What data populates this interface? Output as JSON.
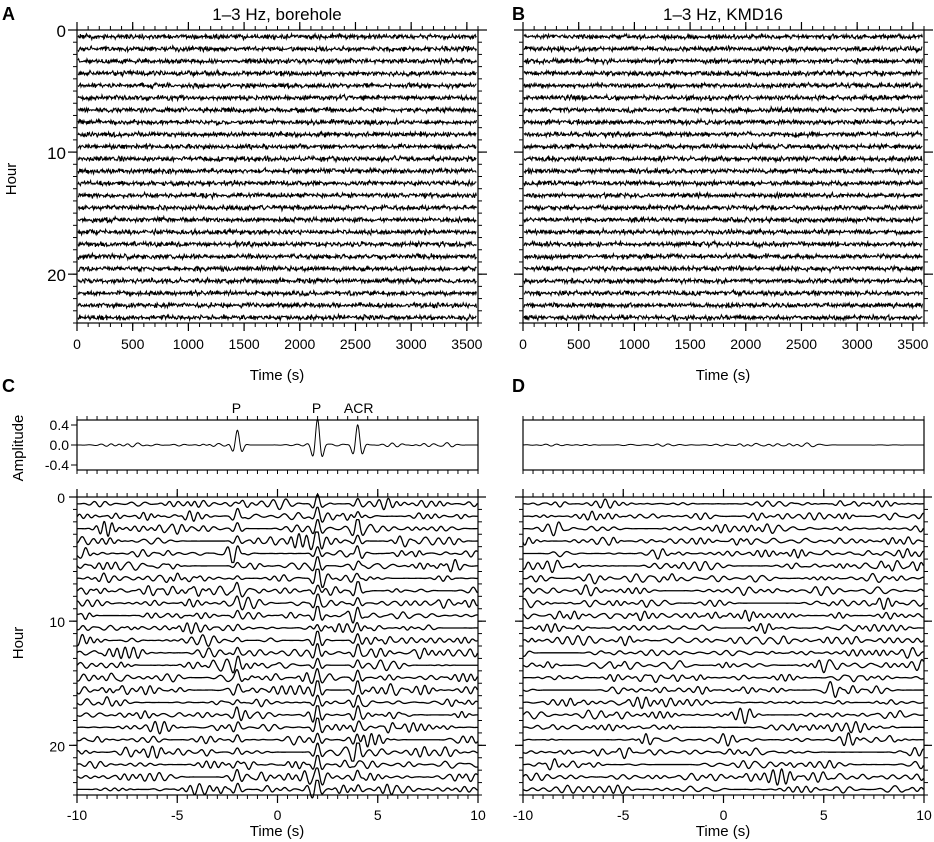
{
  "panels": [
    {
      "id": "A",
      "label": "A"
    },
    {
      "id": "B",
      "label": "B"
    },
    {
      "id": "C",
      "label": "C"
    },
    {
      "id": "D",
      "label": "D"
    }
  ],
  "chart_data": [
    {
      "panel": "A",
      "type": "line",
      "title": "1–3 Hz, borehole",
      "xlabel": "Time (s)",
      "ylabel": "Hour",
      "xlim": [
        0,
        3600
      ],
      "ylim": [
        0,
        24
      ],
      "x_ticks": [
        0,
        500,
        1000,
        1500,
        2000,
        2500,
        3000,
        3500
      ],
      "y_ticks": [
        0,
        10,
        20
      ],
      "y_reversed": true,
      "series_count": 24,
      "description_values": "hourly noise record traces, band-passed 1-3 Hz"
    },
    {
      "panel": "B",
      "type": "line",
      "title": "1–3 Hz, KMD16",
      "xlabel": "Time (s)",
      "ylabel": "",
      "xlim": [
        0,
        3600
      ],
      "ylim": [
        0,
        24
      ],
      "x_ticks": [
        0,
        500,
        1000,
        1500,
        2000,
        2500,
        3000,
        3500
      ],
      "y_ticks": [],
      "y_reversed": true,
      "series_count": 24
    },
    {
      "panel": "C-top",
      "type": "line",
      "title": "",
      "xlabel": "",
      "ylabel": "Amplitude",
      "xlim": [
        -10,
        10
      ],
      "ylim": [
        -0.5,
        0.5
      ],
      "y_ticks": [
        0.4,
        0.0,
        -0.4
      ],
      "y_tick_labels": [
        "0.4",
        "0.0",
        "-0.4"
      ],
      "annotations": [
        {
          "text": "P",
          "x": -2.0
        },
        {
          "text": "P",
          "x": 2.0
        },
        {
          "text": "ACR",
          "x": 4.0
        }
      ],
      "features": [
        {
          "x": -2.0,
          "amplitude": 0.3
        },
        {
          "x": 2.0,
          "amplitude": 0.5
        },
        {
          "x": 4.0,
          "amplitude": 0.4
        }
      ]
    },
    {
      "panel": "C",
      "type": "line",
      "title": "",
      "xlabel": "Time (s)",
      "ylabel": "Hour",
      "xlim": [
        -10,
        10
      ],
      "ylim": [
        0,
        24
      ],
      "x_ticks": [
        -10,
        -5,
        0,
        5,
        10
      ],
      "y_ticks": [
        0,
        10,
        20
      ],
      "y_reversed": true,
      "series_count": 24
    },
    {
      "panel": "D-top",
      "type": "line",
      "title": "",
      "xlabel": "",
      "ylabel": "",
      "xlim": [
        -10,
        10
      ],
      "ylim": [
        -0.5,
        0.5
      ],
      "features": []
    },
    {
      "panel": "D",
      "type": "line",
      "title": "",
      "xlabel": "Time (s)",
      "ylabel": "",
      "xlim": [
        -10,
        10
      ],
      "ylim": [
        0,
        24
      ],
      "x_ticks": [
        -10,
        -5,
        0,
        5,
        10
      ],
      "y_ticks": [],
      "y_reversed": true,
      "series_count": 24
    }
  ]
}
